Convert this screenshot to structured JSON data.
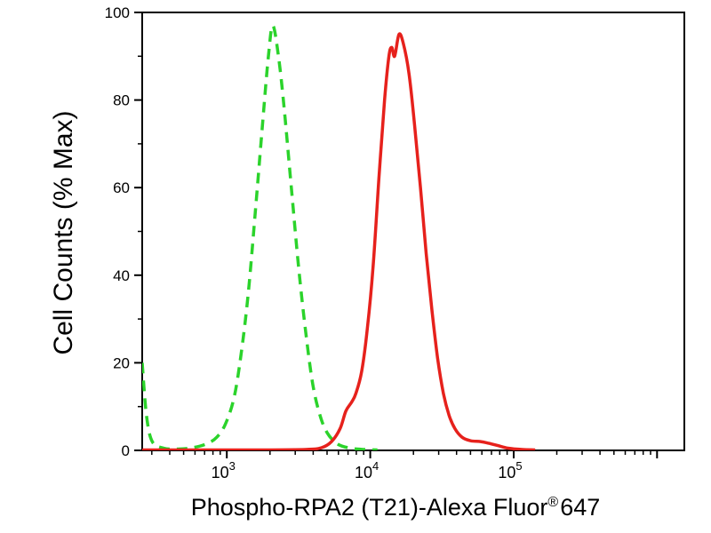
{
  "figure": {
    "background": "#ffffff",
    "frame_color": "#000000",
    "text_color": "#000000"
  },
  "chart_data": {
    "type": "line",
    "chart_kind": "flow-cytometry-histogram",
    "title": "",
    "ylabel": "Cell Counts (% Max)",
    "xlabel": {
      "main": "Phospho-RPA2 (T21)-Alexa Fluor",
      "sup": "®",
      "suffix": "647"
    },
    "x_scale": "log10",
    "xlim_log10": [
      2.41,
      6.19
    ],
    "ylim": [
      0,
      100
    ],
    "grid": false,
    "legend": "none",
    "y_major_ticks": [
      0,
      20,
      40,
      60,
      80,
      100
    ],
    "y_minor_ticks": [
      10,
      30,
      50,
      70,
      90
    ],
    "x_major_tick_labels": [
      {
        "base": "10",
        "exp": "3",
        "log10": 3
      },
      {
        "base": "10",
        "exp": "4",
        "log10": 4
      },
      {
        "base": "10",
        "exp": "5",
        "log10": 5
      }
    ],
    "x_major_tick_unlabeled_log10": [
      6
    ],
    "series": [
      {
        "name": "green-dashed-control",
        "color": "#2bd32b",
        "line_style": "dashed",
        "points_log10x_pct": [
          [
            2.41,
            20
          ],
          [
            2.44,
            8
          ],
          [
            2.48,
            2
          ],
          [
            2.56,
            0.5
          ],
          [
            2.66,
            0.3
          ],
          [
            2.76,
            0.6
          ],
          [
            2.86,
            1.5
          ],
          [
            2.93,
            3
          ],
          [
            2.99,
            6
          ],
          [
            3.05,
            12
          ],
          [
            3.1,
            22
          ],
          [
            3.15,
            36
          ],
          [
            3.2,
            55
          ],
          [
            3.25,
            75
          ],
          [
            3.29,
            90
          ],
          [
            3.32,
            97
          ],
          [
            3.36,
            90
          ],
          [
            3.4,
            78
          ],
          [
            3.45,
            60
          ],
          [
            3.5,
            42
          ],
          [
            3.55,
            27
          ],
          [
            3.6,
            15
          ],
          [
            3.65,
            8
          ],
          [
            3.7,
            4
          ],
          [
            3.77,
            1.5
          ],
          [
            3.86,
            0.5
          ],
          [
            3.96,
            0.2
          ],
          [
            4.05,
            0.1
          ]
        ]
      },
      {
        "name": "red-solid-phospho-rpa2",
        "color": "#e6211c",
        "line_style": "solid",
        "points_log10x_pct": [
          [
            2.41,
            0.1
          ],
          [
            3.2,
            0.1
          ],
          [
            3.55,
            0.2
          ],
          [
            3.66,
            0.6
          ],
          [
            3.73,
            2
          ],
          [
            3.79,
            5
          ],
          [
            3.83,
            9
          ],
          [
            3.87,
            11
          ],
          [
            3.9,
            13
          ],
          [
            3.94,
            18
          ],
          [
            3.98,
            28
          ],
          [
            4.02,
            42
          ],
          [
            4.06,
            62
          ],
          [
            4.1,
            80
          ],
          [
            4.13,
            90
          ],
          [
            4.15,
            92
          ],
          [
            4.17,
            90
          ],
          [
            4.2,
            95
          ],
          [
            4.23,
            93
          ],
          [
            4.27,
            86
          ],
          [
            4.31,
            74
          ],
          [
            4.35,
            60
          ],
          [
            4.39,
            45
          ],
          [
            4.43,
            32
          ],
          [
            4.47,
            21
          ],
          [
            4.51,
            13
          ],
          [
            4.55,
            8
          ],
          [
            4.59,
            5
          ],
          [
            4.64,
            3
          ],
          [
            4.7,
            2.2
          ],
          [
            4.77,
            2.0
          ],
          [
            4.83,
            1.6
          ],
          [
            4.89,
            1.1
          ],
          [
            4.96,
            0.5
          ],
          [
            5.06,
            0.2
          ],
          [
            5.15,
            0.1
          ]
        ]
      }
    ]
  }
}
